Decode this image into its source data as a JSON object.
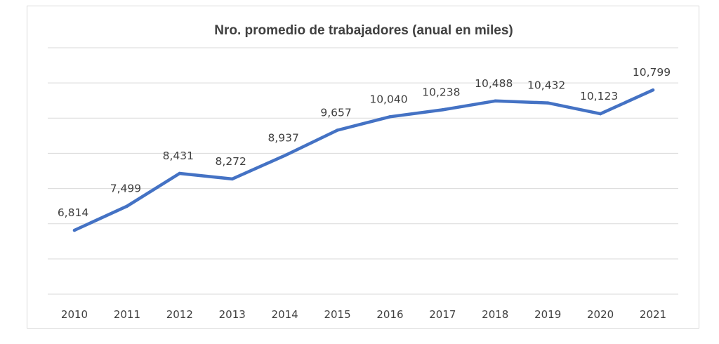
{
  "chart_data": {
    "type": "line",
    "title": "Nro. promedio de trabajadores (anual en miles)",
    "xlabel": "",
    "ylabel": "",
    "categories": [
      "2010",
      "2011",
      "2012",
      "2013",
      "2014",
      "2015",
      "2016",
      "2017",
      "2018",
      "2019",
      "2020",
      "2021"
    ],
    "series": [
      {
        "values": [
          6814,
          7499,
          8431,
          8272,
          8937,
          9657,
          10040,
          10238,
          10488,
          10432,
          10123,
          10799
        ],
        "labels": [
          "6,814",
          "7,499",
          "8,431",
          "8,272",
          "8,937",
          "9,657",
          "10,040",
          "10,238",
          "10,488",
          "10,432",
          "10,123",
          "10,799"
        ],
        "color": "#4472c4"
      }
    ],
    "ylim": [
      5000,
      12000
    ],
    "grid": true,
    "legend": "none",
    "gridColor": "#d9d9d9"
  }
}
